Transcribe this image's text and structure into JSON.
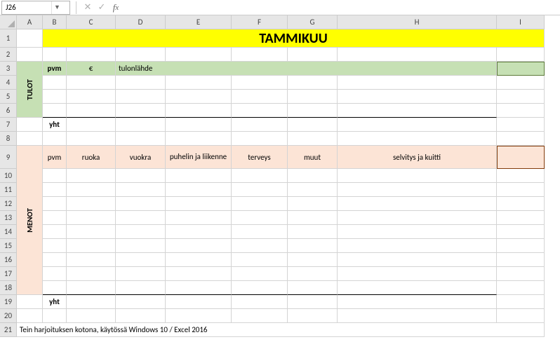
{
  "namebox": {
    "value": "J26"
  },
  "formula_bar": {
    "value": ""
  },
  "columns": [
    "A",
    "B",
    "C",
    "D",
    "E",
    "F",
    "G",
    "H",
    "I"
  ],
  "title": "TAMMIKUU",
  "tulot": {
    "label": "TULOT",
    "header": {
      "pvm": "pvm",
      "euro": "€",
      "source": "tulonlähde"
    },
    "total_label": "yht"
  },
  "menot": {
    "label": "MENOT",
    "header": {
      "pvm": "pvm",
      "ruoka": "ruoka",
      "vuokra": "vuokra",
      "puhelin": "puhelin ja liikenne",
      "terveys": "terveys",
      "muut": "muut",
      "selvitys": "selvitys ja kuitti"
    },
    "total_label": "yht"
  },
  "footer_note": "Tein harjoituksen kotona, käytössä Windows 10 / Excel 2016",
  "row_heights": {
    "h": 20,
    "r1": 26,
    "r2": 20,
    "r3": 20,
    "r4": 20,
    "r5": 20,
    "r6": 20,
    "r7": 20,
    "r8": 20,
    "r9": 33,
    "r10": 20,
    "r11": 20,
    "r12": 20,
    "r13": 20,
    "r14": 20,
    "r15": 20,
    "r16": 20,
    "r17": 20,
    "r18": 20,
    "r19": 20,
    "r20": 20,
    "r21": 20
  },
  "colors": {
    "yellow": "#ffff00",
    "green": "#c6e0b4",
    "peach": "#fce4d6",
    "green_border": "#5d7b3a",
    "peach_border": "#833c0c",
    "grid": "#d4d4d4",
    "header_bg": "#e6e6e6"
  }
}
